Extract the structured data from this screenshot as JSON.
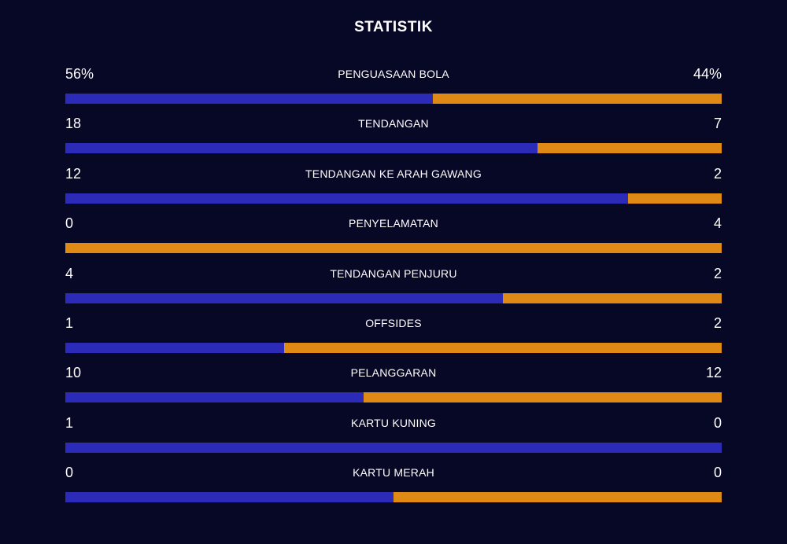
{
  "title": "STATISTIK",
  "colors": {
    "background": "#070726",
    "home": "#2b2bb8",
    "away": "#e08a16"
  },
  "stats": [
    {
      "label": "PENGUASAAN BOLA",
      "left": "56%",
      "right": "44%",
      "home_share": 0.56
    },
    {
      "label": "TENDANGAN",
      "left": "18",
      "right": "7",
      "home_share": 0.72
    },
    {
      "label": "TENDANGAN KE ARAH GAWANG",
      "left": "12",
      "right": "2",
      "home_share": 0.857
    },
    {
      "label": "PENYELAMATAN",
      "left": "0",
      "right": "4",
      "home_share": 0.0
    },
    {
      "label": "TENDANGAN PENJURU",
      "left": "4",
      "right": "2",
      "home_share": 0.667
    },
    {
      "label": "OFFSIDES",
      "left": "1",
      "right": "2",
      "home_share": 0.333
    },
    {
      "label": "PELANGGARAN",
      "left": "10",
      "right": "12",
      "home_share": 0.455
    },
    {
      "label": "KARTU KUNING",
      "left": "1",
      "right": "0",
      "home_share": 1.0
    },
    {
      "label": "KARTU MERAH",
      "left": "0",
      "right": "0",
      "home_share": 0.5
    }
  ]
}
